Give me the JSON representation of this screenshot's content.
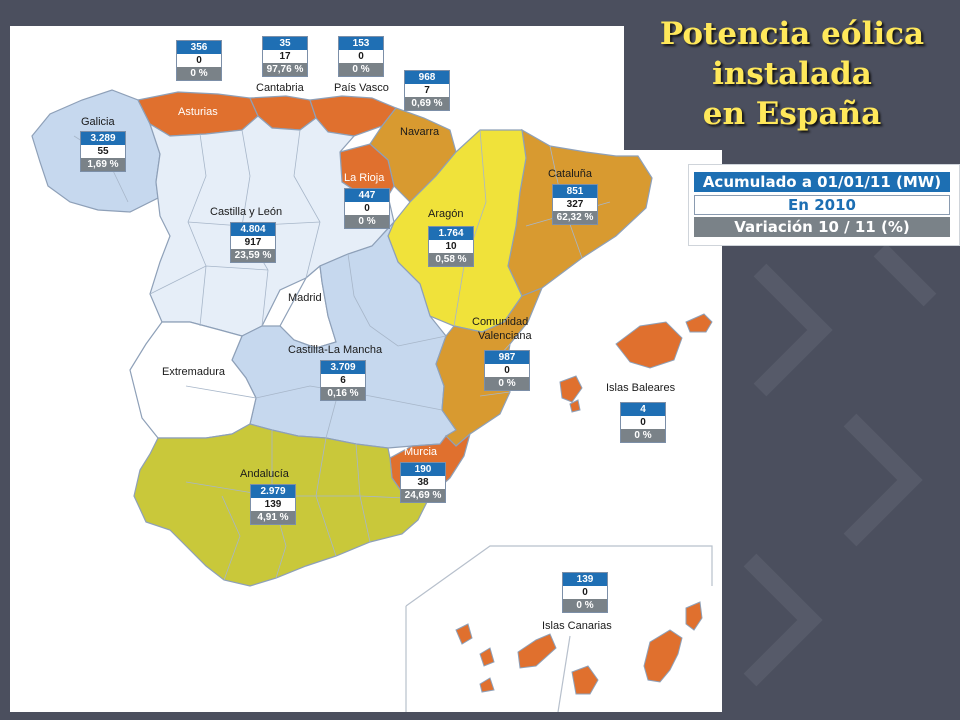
{
  "title": {
    "line1": "Potencia eólica",
    "line2": "instalada",
    "line3": "en España"
  },
  "legend": {
    "accumulated": "Acumulado a 01/01/11 (MW)",
    "year": "En 2010",
    "variation": "Variación 10 / 11 (%)"
  },
  "colors": {
    "background": "#4b4f5e",
    "title": "#ffe85a",
    "orange_dark": "#e0702e",
    "orange": "#d89a30",
    "yellow": "#f0e23a",
    "olive": "#c9c83a",
    "light_blue": "#c6d8ee",
    "pale_blue": "#e6eef8",
    "white_region": "#ffffff",
    "box_blue": "#1f6fb4",
    "box_grey": "#7a8288"
  },
  "regions": {
    "galicia": {
      "name": "Galicia",
      "accumulated": "3.289",
      "added": "55",
      "variation": "1,69 %"
    },
    "asturias": {
      "name": "Asturias",
      "accumulated": "356",
      "added": "0",
      "variation": "0 %"
    },
    "cantabria": {
      "name": "Cantabria",
      "accumulated": "35",
      "added": "17",
      "variation": "97,76 %"
    },
    "pais_vasco": {
      "name": "País Vasco",
      "accumulated": "153",
      "added": "0",
      "variation": "0 %"
    },
    "navarra": {
      "name": "Navarra",
      "accumulated": "968",
      "added": "7",
      "variation": "0,69 %"
    },
    "la_rioja": {
      "name": "La Rioja",
      "accumulated": "447",
      "added": "0",
      "variation": "0 %"
    },
    "cataluna": {
      "name": "Cataluña",
      "accumulated": "851",
      "added": "327",
      "variation": "62,32 %"
    },
    "castilla_leon": {
      "name": "Castilla y León",
      "accumulated": "4.804",
      "added": "917",
      "variation": "23,59 %"
    },
    "aragon": {
      "name": "Aragón",
      "accumulated": "1.764",
      "added": "10",
      "variation": "0,58 %"
    },
    "madrid": {
      "name": "Madrid"
    },
    "extremadura": {
      "name": "Extremadura"
    },
    "castilla_mancha": {
      "name": "Castilla-La Mancha",
      "accumulated": "3.709",
      "added": "6",
      "variation": "0,16 %"
    },
    "valenciana": {
      "name_line1": "Comunidad",
      "name_line2": "Valenciana",
      "accumulated": "987",
      "added": "0",
      "variation": "0 %"
    },
    "baleares": {
      "name": "Islas Baleares",
      "accumulated": "4",
      "added": "0",
      "variation": "0 %"
    },
    "murcia": {
      "name": "Murcia",
      "accumulated": "190",
      "added": "38",
      "variation": "24,69 %"
    },
    "andalucia": {
      "name": "Andalucía",
      "accumulated": "2.979",
      "added": "139",
      "variation": "4,91 %"
    },
    "canarias": {
      "name": "Islas Canarias",
      "accumulated": "139",
      "added": "0",
      "variation": "0 %"
    }
  }
}
